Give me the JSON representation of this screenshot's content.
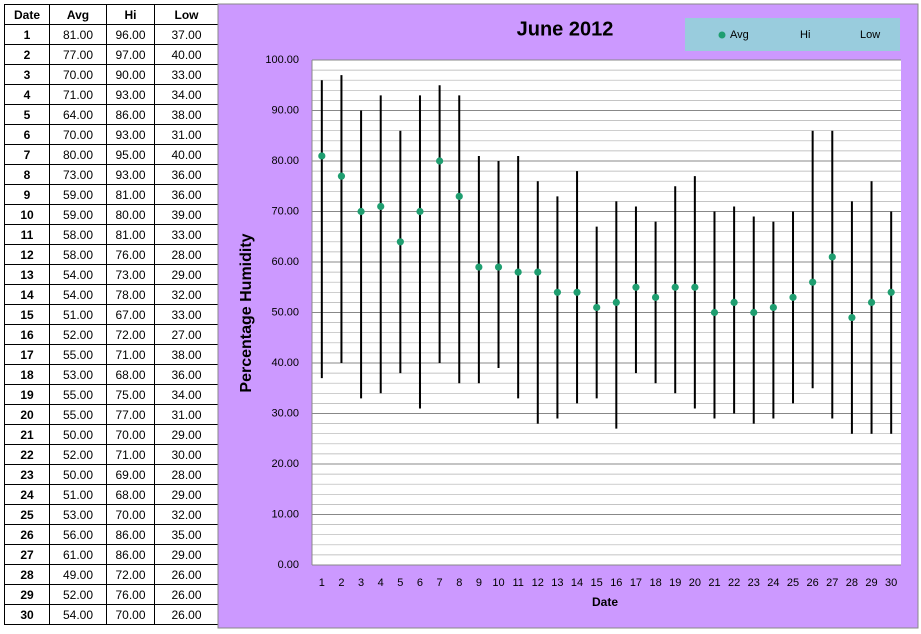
{
  "table": {
    "header": [
      "Date",
      "Avg",
      "Hi",
      "Low"
    ],
    "rows": [
      [
        "1",
        "81.00",
        "96.00",
        "37.00"
      ],
      [
        "2",
        "77.00",
        "97.00",
        "40.00"
      ],
      [
        "3",
        "70.00",
        "90.00",
        "33.00"
      ],
      [
        "4",
        "71.00",
        "93.00",
        "34.00"
      ],
      [
        "5",
        "64.00",
        "86.00",
        "38.00"
      ],
      [
        "6",
        "70.00",
        "93.00",
        "31.00"
      ],
      [
        "7",
        "80.00",
        "95.00",
        "40.00"
      ],
      [
        "8",
        "73.00",
        "93.00",
        "36.00"
      ],
      [
        "9",
        "59.00",
        "81.00",
        "36.00"
      ],
      [
        "10",
        "59.00",
        "80.00",
        "39.00"
      ],
      [
        "11",
        "58.00",
        "81.00",
        "33.00"
      ],
      [
        "12",
        "58.00",
        "76.00",
        "28.00"
      ],
      [
        "13",
        "54.00",
        "73.00",
        "29.00"
      ],
      [
        "14",
        "54.00",
        "78.00",
        "32.00"
      ],
      [
        "15",
        "51.00",
        "67.00",
        "33.00"
      ],
      [
        "16",
        "52.00",
        "72.00",
        "27.00"
      ],
      [
        "17",
        "55.00",
        "71.00",
        "38.00"
      ],
      [
        "18",
        "53.00",
        "68.00",
        "36.00"
      ],
      [
        "19",
        "55.00",
        "75.00",
        "34.00"
      ],
      [
        "20",
        "55.00",
        "77.00",
        "31.00"
      ],
      [
        "21",
        "50.00",
        "70.00",
        "29.00"
      ],
      [
        "22",
        "52.00",
        "71.00",
        "30.00"
      ],
      [
        "23",
        "50.00",
        "69.00",
        "28.00"
      ],
      [
        "24",
        "51.00",
        "68.00",
        "29.00"
      ],
      [
        "25",
        "53.00",
        "70.00",
        "32.00"
      ],
      [
        "26",
        "56.00",
        "86.00",
        "35.00"
      ],
      [
        "27",
        "61.00",
        "86.00",
        "29.00"
      ],
      [
        "28",
        "49.00",
        "72.00",
        "26.00"
      ],
      [
        "29",
        "52.00",
        "76.00",
        "26.00"
      ],
      [
        "30",
        "54.00",
        "70.00",
        "26.00"
      ]
    ]
  },
  "chart_data": {
    "type": "hilo",
    "title": "June 2012",
    "x_label": "Date",
    "y_label": "Percentage Humidity",
    "categories": [
      "1",
      "2",
      "3",
      "4",
      "5",
      "6",
      "7",
      "8",
      "9",
      "10",
      "11",
      "12",
      "13",
      "14",
      "15",
      "16",
      "17",
      "18",
      "19",
      "20",
      "21",
      "22",
      "23",
      "24",
      "25",
      "26",
      "27",
      "28",
      "29",
      "30"
    ],
    "series": [
      {
        "name": "Avg",
        "color": "#1f9e70",
        "values": [
          81,
          77,
          70,
          71,
          64,
          70,
          80,
          73,
          59,
          59,
          58,
          58,
          54,
          54,
          51,
          52,
          55,
          53,
          55,
          55,
          50,
          52,
          50,
          51,
          53,
          56,
          61,
          49,
          52,
          54
        ]
      },
      {
        "name": "Hi",
        "color": "#000000",
        "values": [
          96,
          97,
          90,
          93,
          86,
          93,
          95,
          93,
          81,
          80,
          81,
          76,
          73,
          78,
          67,
          72,
          71,
          68,
          75,
          77,
          70,
          71,
          69,
          68,
          70,
          86,
          86,
          72,
          76,
          70
        ]
      },
      {
        "name": "Low",
        "color": "#000000",
        "values": [
          37,
          40,
          33,
          34,
          38,
          31,
          40,
          36,
          36,
          39,
          33,
          28,
          29,
          32,
          33,
          27,
          38,
          36,
          34,
          31,
          29,
          30,
          28,
          29,
          32,
          35,
          29,
          26,
          26,
          26
        ]
      }
    ],
    "ylim": [
      0,
      100
    ],
    "yticks": [
      {
        "value": 0,
        "label": "0.00"
      },
      {
        "value": 10,
        "label": "10.00"
      },
      {
        "value": 20,
        "label": "20.00"
      },
      {
        "value": 30,
        "label": "30.00"
      },
      {
        "value": 40,
        "label": "40.00"
      },
      {
        "value": 50,
        "label": "50.00"
      },
      {
        "value": 60,
        "label": "60.00"
      },
      {
        "value": 70,
        "label": "70.00"
      },
      {
        "value": 80,
        "label": "80.00"
      },
      {
        "value": 90,
        "label": "90.00"
      },
      {
        "value": 100,
        "label": "100.00"
      }
    ],
    "grid": true,
    "minor_grid_interval": 2,
    "legend": "top-right",
    "panel_color": "#cc99ff",
    "legend_color": "#99ccdd"
  }
}
